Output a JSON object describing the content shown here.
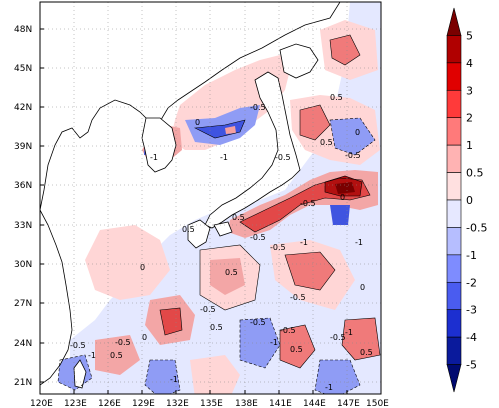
{
  "map": {
    "lat_labels": [
      "48N",
      "45N",
      "42N",
      "39N",
      "36N",
      "33N",
      "30N",
      "27N",
      "24N",
      "21N"
    ],
    "lon_labels": [
      "120E",
      "123E",
      "126E",
      "129E",
      "132E",
      "135E",
      "138E",
      "141E",
      "144E",
      "147E",
      "150E"
    ],
    "contour_labels": [
      "0.5",
      "-0.5",
      "0",
      "-1",
      "-1",
      "0.5",
      "-0.5",
      "0",
      "0",
      "-0.5",
      "0.5",
      "-0.5",
      "-1",
      "-0.5",
      "-1",
      "0.5",
      "-0.5",
      "0",
      "-0.5",
      "0.5",
      "0",
      "-0.5",
      "-1",
      "-0.5",
      "0.5",
      "-0.5",
      "-1",
      "-0.5",
      "-0.5",
      "-1",
      "-1",
      "0.5",
      "0.5",
      "-1",
      "0.5",
      "-0.5",
      "0"
    ],
    "colors": {
      "ocean_base": "#f8c0c0",
      "negative_light": "#d8dcff",
      "negative_mid": "#7f8ff0",
      "negative_dark": "#2f46d8",
      "positive_light": "#ffd6d6",
      "positive_mid": "#f07a7a",
      "positive_dark": "#d01818",
      "land": "#ffffff"
    }
  },
  "colorbar": {
    "labels": [
      "5",
      "4",
      "3",
      "2",
      "1",
      "0.5",
      "0",
      "-0.5",
      "-1",
      "-2",
      "-3",
      "-4",
      "-5"
    ],
    "colors": [
      "#7a0000",
      "#b00000",
      "#e00000",
      "#ff3a3a",
      "#ff7a7a",
      "#ffb3b3",
      "#ffe0e0",
      "#e6e8ff",
      "#b6beff",
      "#7e8cff",
      "#4a5cf0",
      "#1c2fd0",
      "#0a1a9c",
      "#000a70"
    ]
  }
}
